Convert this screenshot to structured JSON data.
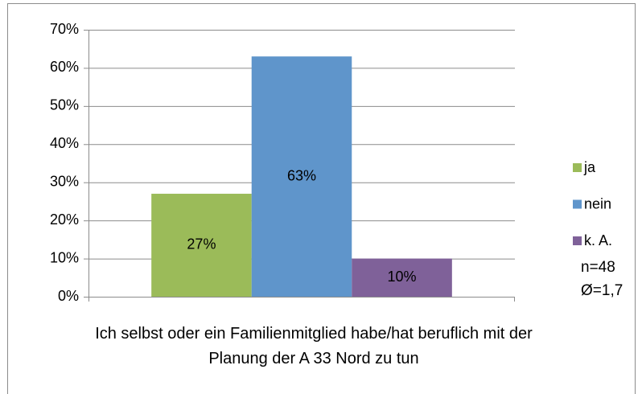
{
  "chart_data": {
    "type": "bar",
    "categories": [
      "Ich selbst oder ein Familienmitglied habe/hat beruflich mit der Planung der A 33 Nord zu tun"
    ],
    "series": [
      {
        "name": "ja",
        "color": "#9bbb59",
        "values": [
          27
        ],
        "value_labels": [
          "27%"
        ]
      },
      {
        "name": "nein",
        "color": "#5f95cb",
        "values": [
          63
        ],
        "value_labels": [
          "63%"
        ]
      },
      {
        "name": "k. A.",
        "color": "#7f6199",
        "values": [
          10
        ],
        "value_labels": [
          "10%"
        ]
      }
    ],
    "ylim": [
      0,
      70
    ],
    "yticks": [
      {
        "value": 0,
        "label": "0%"
      },
      {
        "value": 10,
        "label": "10%"
      },
      {
        "value": 20,
        "label": "20%"
      },
      {
        "value": 30,
        "label": "30%"
      },
      {
        "value": 40,
        "label": "40%"
      },
      {
        "value": 50,
        "label": "50%"
      },
      {
        "value": 60,
        "label": "60%"
      },
      {
        "value": 70,
        "label": "70%"
      }
    ],
    "grid": true,
    "legend": "right",
    "annotation": "n=48 Ø=1,7"
  }
}
